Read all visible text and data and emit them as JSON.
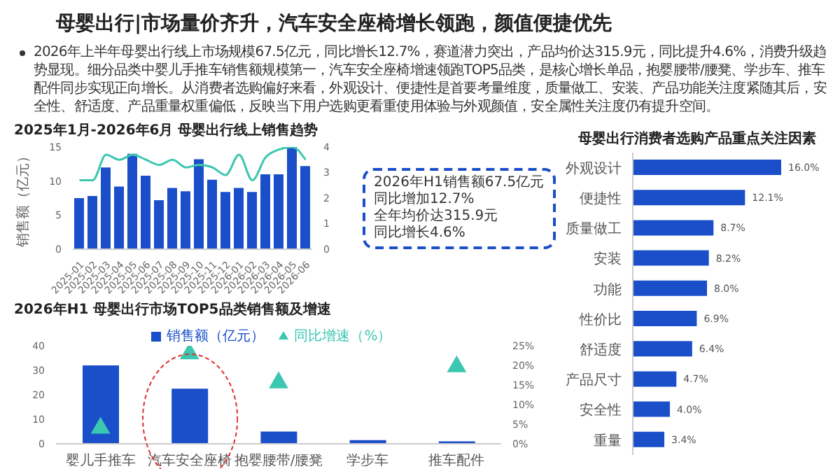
{
  "chart_data": [
    {
      "type": "other",
      "title": "母婴出行|市场量价齐升，汽车安全座椅增长领跑，颜值便捷优先",
      "annotations": [
        "2026年上半年母婴出行线上市场规模67.5亿元，同比增长12.7%，赛道潜力突出，产品均价达315.9元，同比提升4.6%，消费升级趋势显现。细分品类中婴儿手推车销售额规模第一，汽车安全座椅增速领跑TOP5品类，是核心增长单品，抱婴腰带/腰凳、学步车、推车配件同步实现正向增长。从消费者选购偏好来看，外观设计、便捷性是首要考量维度，质量做工、安装、产品功能关注度紧随其后，安全性、舒适度、产品重量权重偏低，反映当下用户选购更看重使用体验与外观颜值，安全属性关注度仍有提升空间。"
      ]
    },
    {
      "type": "bar",
      "title": "2025年1月-2026年6月  母婴出行线上销售趋势",
      "ylabel": "销售额（亿元）",
      "categories": [
        "2025-01",
        "2025-02",
        "2025-03",
        "2025-04",
        "2025-05",
        "2025-06",
        "2025-07",
        "2025-08",
        "2025-09",
        "2025-10",
        "2025-11",
        "2025-12",
        "2026-01",
        "2026-02",
        "2026-03",
        "2026-04",
        "2026-05",
        "2026-06"
      ],
      "series": [
        {
          "type": "bar",
          "color": "#1a4fc9",
          "values": [
            7.5,
            7.8,
            12,
            9.2,
            14,
            10.8,
            7.2,
            9,
            8.5,
            13.2,
            10.2,
            8.4,
            9,
            8.4,
            11,
            11,
            15,
            12.2
          ]
        },
        {
          "type": "line",
          "axis": "y2",
          "color": "#3cc7b0",
          "values": [
            2.7,
            2.7,
            3.7,
            3.5,
            3.7,
            3.5,
            3.3,
            3.5,
            3.2,
            3.3,
            3.2,
            2.9,
            3.7,
            2.7,
            3.6,
            3.9,
            4.0,
            3.5
          ]
        }
      ],
      "ylim": [
        0,
        15
      ],
      "yticks": [
        0,
        5,
        10,
        15
      ],
      "y2lim": [
        0,
        4
      ],
      "y2ticks": [
        0,
        1,
        2,
        3,
        4
      ],
      "marker": "none",
      "annotations": [
        "2026年H1销售额67.5亿元",
        "同比增加12.7%",
        "全年均价达315.9元",
        "同比增长4.6%"
      ]
    },
    {
      "type": "bar",
      "title": "2026年H1  母婴出行市场TOP5品类销售额及增速",
      "categories": [
        "婴儿手推车",
        "汽车安全座椅",
        "抱婴腰带/腰凳",
        "学步车",
        "推车配件"
      ],
      "series": [
        {
          "name": "销售额（亿元）",
          "type": "bar",
          "color": "#1a4fc9",
          "values": [
            32,
            22.5,
            5,
            1.5,
            1
          ]
        },
        {
          "name": "同比增速（%）",
          "type": "scatter",
          "axis": "y2",
          "color": "#3cc7b0",
          "values": [
            4,
            23,
            15.6,
            null,
            19.7
          ]
        }
      ],
      "ylim": [
        0,
        40
      ],
      "yticks": [
        0,
        10,
        20,
        30,
        40
      ],
      "y2lim": [
        0,
        25
      ],
      "y2ticks": [
        {
          "value": 0,
          "label": "0%"
        },
        {
          "value": 5,
          "label": "5%"
        },
        {
          "value": 10,
          "label": "10%"
        },
        {
          "value": 15,
          "label": "15%"
        },
        {
          "value": 20,
          "label": "20%"
        },
        {
          "value": 25,
          "label": "25%"
        }
      ],
      "marker": "triangle",
      "legend": "top"
    },
    {
      "type": "bar",
      "orientation": "horizontal",
      "title": "母婴出行消费者选购产品重点关注因素",
      "categories": [
        "外观设计",
        "便捷性",
        "质量做工",
        "安装",
        "功能",
        "性价比",
        "舒适度",
        "产品尺寸",
        "安全性",
        "重量"
      ],
      "values": [
        16.0,
        12.1,
        8.7,
        8.2,
        8.0,
        6.9,
        6.4,
        4.7,
        4.0,
        3.4
      ],
      "value_labels": [
        "16.0%",
        "12.1%",
        "8.7%",
        "8.2%",
        "8.0%",
        "6.9%",
        "6.4%",
        "4.7%",
        "4.0%",
        "3.4%"
      ],
      "color": "#1a4fc9"
    }
  ]
}
